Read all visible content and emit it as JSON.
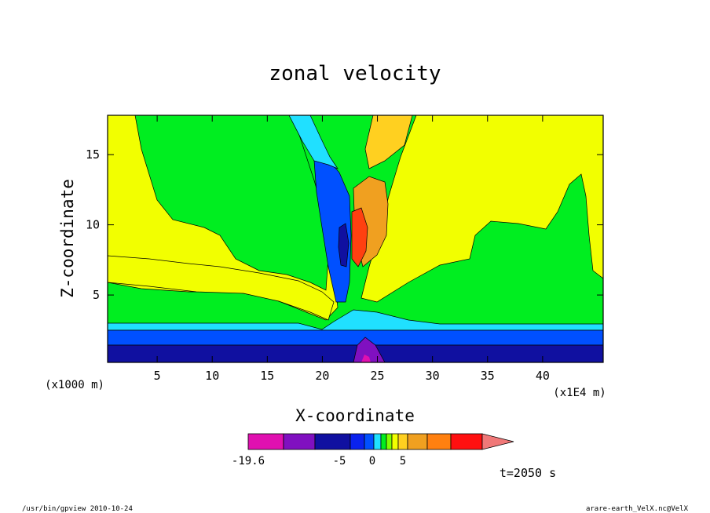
{
  "chart_data": {
    "type": "heatmap",
    "title": "zonal velocity",
    "xlabel": "X-coordinate",
    "ylabel": "Z-coordinate",
    "x_units_note": "(x1E4 m)",
    "y_units_note": "(x1000 m)",
    "xlim": [
      0.5,
      45.5
    ],
    "ylim": [
      0.2,
      17.8
    ],
    "x_ticks": [
      5,
      10,
      15,
      20,
      25,
      30,
      35,
      40
    ],
    "y_ticks": [
      5,
      10,
      15
    ],
    "colorbar": {
      "labels": [
        {
          "text": "-19.6",
          "value": -19.6
        },
        {
          "text": "-5",
          "value": -5
        },
        {
          "text": "0",
          "value": 0
        },
        {
          "text": "5",
          "value": 5
        }
      ],
      "colors": [
        "#e010b0",
        "#8010c0",
        "#1010a0",
        "#0a22ee",
        "#0050ff",
        "#20e0ff",
        "#00ee20",
        "#80ff00",
        "#f2ff00",
        "#ffd020",
        "#f0a020",
        "#ff8010",
        "#ff1010",
        "#f07878"
      ]
    },
    "time_label": "t=2050 s",
    "footer_left": "/usr/bin/gpview  2010-10-24",
    "footer_right": "arare-earth_VelX.nc@VelX"
  }
}
